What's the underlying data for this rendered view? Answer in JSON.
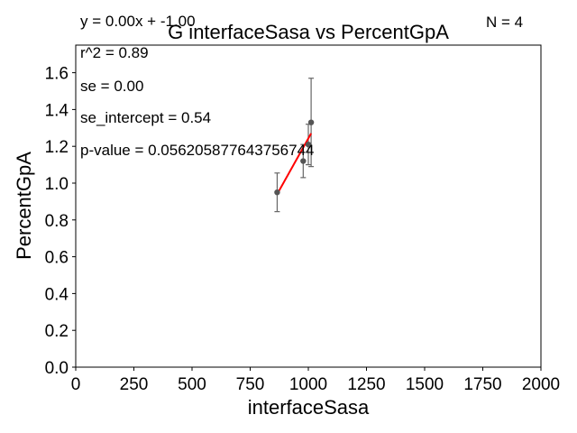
{
  "chart_data": {
    "type": "scatter",
    "title": "G interfaceSasa vs PercentGpA",
    "xlabel": "interfaceSasa",
    "ylabel": "PercentGpA",
    "xlim": [
      0,
      2000
    ],
    "ylim": [
      0,
      1.75
    ],
    "x_ticks": [
      0,
      250,
      500,
      750,
      1000,
      1250,
      1500,
      1750,
      2000
    ],
    "y_ticks": [
      0.0,
      0.2,
      0.4,
      0.6,
      0.8,
      1.0,
      1.2,
      1.4,
      1.6
    ],
    "x_tick_labels": [
      "0",
      "250",
      "500",
      "750",
      "1000",
      "1250",
      "1500",
      "1750",
      "2000"
    ],
    "y_tick_labels": [
      "0.0",
      "0.2",
      "0.4",
      "0.6",
      "0.8",
      "1.0",
      "1.2",
      "1.4",
      "1.6"
    ],
    "grid": false,
    "points": [
      {
        "x": 866,
        "y": 0.95,
        "err": 0.105
      },
      {
        "x": 978,
        "y": 1.12,
        "err": 0.09
      },
      {
        "x": 1000,
        "y": 1.21,
        "err": 0.11
      },
      {
        "x": 1012,
        "y": 1.33,
        "err": 0.24
      }
    ],
    "fit_line": {
      "x": [
        866,
        1012
      ],
      "y": [
        0.94,
        1.27
      ],
      "color": "#ff0000"
    },
    "point_color": "#555555",
    "annotations": {
      "equation": "y = 0.00x + -1.00",
      "n": "N = 4",
      "r2": "r^2 = 0.89",
      "se": "se = 0.00",
      "se_intercept": "se_intercept = 0.54",
      "p_value": "p-value = 0.056205877643756744"
    }
  }
}
